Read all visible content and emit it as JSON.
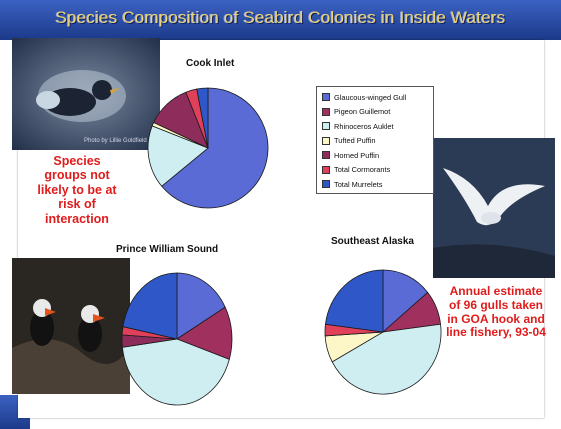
{
  "slide": {
    "title": "Species Composition of Seabird Colonies in Inside Waters",
    "note_left": "Species groups not likely to be at risk of interaction",
    "note_right": "Annual estimate of 96 gulls taken in GOA hook and line fishery, 93-04",
    "photo_credit": "Photo by Lillie Goldfield"
  },
  "colors": {
    "glaucous_winged_gull": "#5a6bd6",
    "pigeon_guillemot": "#a0305e",
    "rhinoceros_auklet": "#cfeef2",
    "tufted_puffin": "#fdf7c8",
    "horned_puffin": "#8e2d5c",
    "total_cormorants": "#e0405a",
    "total_murrelets": "#2f57c8",
    "outline": "#1a1a1a"
  },
  "chart_data": [
    {
      "type": "pie",
      "title": "Cook Inlet",
      "series": [
        {
          "name": "Glaucous-winged Gull",
          "value": 64
        },
        {
          "name": "Pigeon Guillemot",
          "value": 0
        },
        {
          "name": "Rhinoceros Auklet",
          "value": 17
        },
        {
          "name": "Tufted Puffin",
          "value": 1
        },
        {
          "name": "Horned Puffin",
          "value": 12
        },
        {
          "name": "Total Cormorants",
          "value": 3
        },
        {
          "name": "Total Murrelets",
          "value": 3
        }
      ]
    },
    {
      "type": "pie",
      "title": "Prince William Sound",
      "series": [
        {
          "name": "Glaucous-winged Gull",
          "value": 17
        },
        {
          "name": "Pigeon Guillemot",
          "value": 13
        },
        {
          "name": "Rhinoceros Auklet",
          "value": 43
        },
        {
          "name": "Tufted Puffin",
          "value": 0
        },
        {
          "name": "Horned Puffin",
          "value": 3
        },
        {
          "name": "Total Cormorants",
          "value": 2
        },
        {
          "name": "Total Murrelets",
          "value": 22
        }
      ]
    },
    {
      "type": "pie",
      "title": "Southeast Alaska",
      "series": [
        {
          "name": "Glaucous-winged Gull",
          "value": 14
        },
        {
          "name": "Pigeon Guillemot",
          "value": 9
        },
        {
          "name": "Rhinoceros Auklet",
          "value": 44
        },
        {
          "name": "Tufted Puffin",
          "value": 7
        },
        {
          "name": "Horned Puffin",
          "value": 0
        },
        {
          "name": "Total Cormorants",
          "value": 3
        },
        {
          "name": "Total Murrelets",
          "value": 23
        }
      ]
    }
  ],
  "legend": {
    "position": "right-of-top-chart",
    "entries": [
      {
        "label": "Glaucous-winged Gull",
        "color": "#5a6bd6"
      },
      {
        "label": "Pigeon Guillemot",
        "color": "#a0305e"
      },
      {
        "label": "Rhinoceros Auklet",
        "color": "#cfeef2"
      },
      {
        "label": "Tufted Puffin",
        "color": "#fdf7c8"
      },
      {
        "label": "Horned Puffin",
        "color": "#8e2d5c"
      },
      {
        "label": "Total Cormorants",
        "color": "#e0405a"
      },
      {
        "label": "Total Murrelets",
        "color": "#2f57c8"
      }
    ]
  }
}
